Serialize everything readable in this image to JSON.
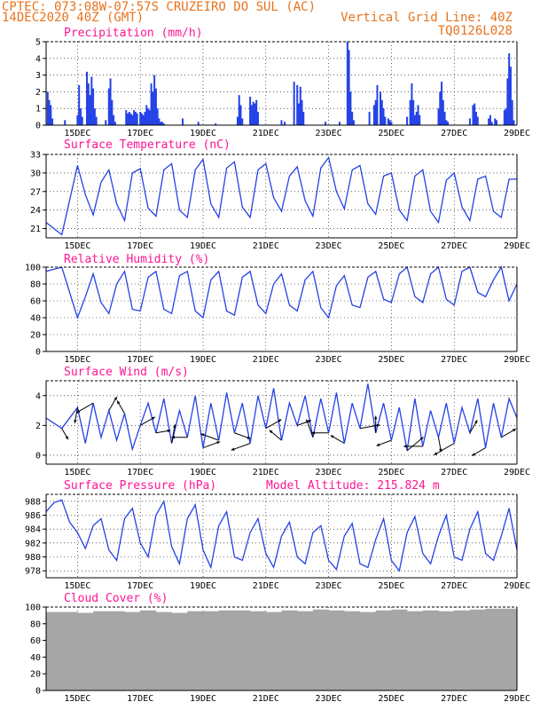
{
  "header": {
    "line1_left": "CPTEC:   073:08W-07:57S  CRUZEIRO DO SUL (AC)",
    "line2_left": "14DEC2020 40Z (GMT)",
    "line2_right": "Vertical Grid Line: 40Z",
    "line3_right": "TQ0126L028",
    "model_altitude": "Model Altitude: 215.824 m"
  },
  "colors": {
    "header": "#e8731c",
    "title": "#ff1493",
    "series": "#2442e6",
    "cloud": "#a6a6a6"
  },
  "x_labels": [
    "15DEC",
    "17DEC",
    "19DEC",
    "21DEC",
    "23DEC",
    "25DEC",
    "27DEC",
    "29DEC"
  ],
  "chart_data": [
    {
      "type": "bar",
      "title": "Precipitation (mm/h)",
      "ylim": [
        0,
        5
      ],
      "yticks": [
        0,
        1,
        2,
        3,
        4,
        5
      ],
      "xlim": [
        14.0,
        29.0
      ],
      "x": [
        14.05,
        14.1,
        14.15,
        14.2,
        14.6,
        15.0,
        15.05,
        15.1,
        15.15,
        15.3,
        15.35,
        15.4,
        15.45,
        15.5,
        15.55,
        15.6,
        15.9,
        16.0,
        16.05,
        16.1,
        16.15,
        16.2,
        16.55,
        16.6,
        16.65,
        16.7,
        16.75,
        16.8,
        16.85,
        16.9,
        17.0,
        17.05,
        17.1,
        17.15,
        17.2,
        17.25,
        17.3,
        17.35,
        17.4,
        17.45,
        17.5,
        17.55,
        17.6,
        17.65,
        17.7,
        17.75,
        18.35,
        18.85,
        19.4,
        20.1,
        20.15,
        20.2,
        20.25,
        20.5,
        20.55,
        20.6,
        20.65,
        20.7,
        20.75,
        21.5,
        21.6,
        21.9,
        22.0,
        22.05,
        22.1,
        22.15,
        22.2,
        22.9,
        23.35,
        23.6,
        23.65,
        23.7,
        23.75,
        23.8,
        24.3,
        24.45,
        24.5,
        24.55,
        24.65,
        24.7,
        24.75,
        24.8,
        24.9,
        24.95,
        25.0,
        25.5,
        25.6,
        25.65,
        25.7,
        25.75,
        25.8,
        25.85,
        25.9,
        26.5,
        26.55,
        26.6,
        26.65,
        26.7,
        26.75,
        26.8,
        27.5,
        27.6,
        27.65,
        27.7,
        27.75,
        28.1,
        28.15,
        28.2,
        28.3,
        28.35,
        28.6,
        28.65,
        28.7,
        28.75,
        28.8,
        28.85,
        28.9
      ],
      "values": [
        2.0,
        1.5,
        1.2,
        0.4,
        0.3,
        0.6,
        2.4,
        1.0,
        0.5,
        3.2,
        2.5,
        1.8,
        2.9,
        2.2,
        1.0,
        0.5,
        0.3,
        2.2,
        2.8,
        1.5,
        0.6,
        0.2,
        0.9,
        0.7,
        0.8,
        0.7,
        0.6,
        0.9,
        0.8,
        0.7,
        0.8,
        0.7,
        0.6,
        0.8,
        1.2,
        1.0,
        0.9,
        2.5,
        2.0,
        3.0,
        2.2,
        1.0,
        0.4,
        0.2,
        0.2,
        0.1,
        0.4,
        0.2,
        0.1,
        0.5,
        1.8,
        1.2,
        0.4,
        1.7,
        1.2,
        1.4,
        1.3,
        1.5,
        0.8,
        0.3,
        0.2,
        2.6,
        2.4,
        1.3,
        2.3,
        1.5,
        0.8,
        0.2,
        0.2,
        5.0,
        4.5,
        2.0,
        0.8,
        0.3,
        0.8,
        1.2,
        1.5,
        2.4,
        2.0,
        1.5,
        1.0,
        0.5,
        0.4,
        0.3,
        0.2,
        0.5,
        1.5,
        2.5,
        1.5,
        0.6,
        0.8,
        1.2,
        0.6,
        1.0,
        2.0,
        2.6,
        1.5,
        0.8,
        0.3,
        0.2,
        0.4,
        1.2,
        1.3,
        0.8,
        0.5,
        0.4,
        0.6,
        0.2,
        0.4,
        0.3,
        0.9,
        1.0,
        2.8,
        4.3,
        3.5,
        1.5,
        0.3
      ]
    },
    {
      "type": "line",
      "title": "Surface Temperature (nC)",
      "ylim": [
        19.5,
        33.0
      ],
      "yticks": [
        21,
        24,
        27,
        30,
        33
      ],
      "xlim": [
        14.0,
        29.0
      ],
      "x": [
        14.0,
        14.5,
        15.0,
        15.25,
        15.5,
        15.75,
        16.0,
        16.25,
        16.5,
        16.75,
        17.0,
        17.25,
        17.5,
        17.75,
        18.0,
        18.25,
        18.5,
        18.75,
        19.0,
        19.25,
        19.5,
        19.75,
        20.0,
        20.25,
        20.5,
        20.75,
        21.0,
        21.25,
        21.5,
        21.75,
        22.0,
        22.25,
        22.5,
        22.75,
        23.0,
        23.25,
        23.5,
        23.75,
        24.0,
        24.25,
        24.5,
        24.75,
        25.0,
        25.25,
        25.5,
        25.75,
        26.0,
        26.25,
        26.5,
        26.75,
        27.0,
        27.25,
        27.5,
        27.75,
        28.0,
        28.25,
        28.5,
        28.75,
        29.0
      ],
      "values": [
        22.0,
        20.0,
        31.2,
        26.5,
        23.2,
        28.5,
        30.5,
        25.0,
        22.3,
        30.0,
        30.7,
        24.3,
        23.0,
        30.5,
        31.5,
        24.0,
        22.8,
        30.5,
        32.2,
        25.0,
        22.8,
        30.8,
        31.8,
        24.5,
        22.8,
        30.5,
        31.5,
        26.0,
        23.8,
        29.5,
        31.0,
        25.5,
        23.0,
        30.8,
        32.5,
        27.0,
        24.2,
        30.5,
        31.2,
        25.0,
        23.3,
        29.5,
        30.0,
        24.0,
        22.3,
        29.5,
        30.5,
        23.8,
        22.0,
        28.8,
        30.0,
        24.5,
        22.3,
        29.0,
        29.5,
        23.8,
        22.8,
        29.0,
        29.0
      ]
    },
    {
      "type": "line",
      "title": "Relative Humidity (%)",
      "ylim": [
        0,
        100
      ],
      "yticks": [
        0,
        20,
        40,
        60,
        80,
        100
      ],
      "xlim": [
        14.0,
        29.0
      ],
      "x": [
        14.0,
        14.5,
        15.0,
        15.25,
        15.5,
        15.75,
        16.0,
        16.25,
        16.5,
        16.75,
        17.0,
        17.25,
        17.5,
        17.75,
        18.0,
        18.25,
        18.5,
        18.75,
        19.0,
        19.25,
        19.5,
        19.75,
        20.0,
        20.25,
        20.5,
        20.75,
        21.0,
        21.25,
        21.5,
        21.75,
        22.0,
        22.25,
        22.5,
        22.75,
        23.0,
        23.25,
        23.5,
        23.75,
        24.0,
        24.25,
        24.5,
        24.75,
        25.0,
        25.25,
        25.5,
        25.75,
        26.0,
        26.25,
        26.5,
        26.75,
        27.0,
        27.25,
        27.5,
        27.75,
        28.0,
        28.25,
        28.5,
        28.75,
        29.0
      ],
      "values": [
        95,
        100,
        40,
        65,
        92,
        58,
        45,
        80,
        95,
        50,
        48,
        88,
        95,
        50,
        45,
        90,
        95,
        48,
        40,
        85,
        95,
        48,
        43,
        88,
        95,
        55,
        45,
        80,
        92,
        55,
        48,
        85,
        95,
        52,
        40,
        78,
        90,
        55,
        52,
        88,
        95,
        62,
        58,
        92,
        100,
        65,
        58,
        92,
        100,
        62,
        55,
        95,
        100,
        70,
        65,
        85,
        100,
        60,
        80
      ]
    },
    {
      "type": "line",
      "title": "Surface Wind (m/s)",
      "ylim": [
        -0.6,
        5.0
      ],
      "yticks": [
        0,
        2,
        4
      ],
      "xlim": [
        14.0,
        29.0
      ],
      "x": [
        14.0,
        14.5,
        15.0,
        15.25,
        15.5,
        15.75,
        16.0,
        16.25,
        16.5,
        16.75,
        17.0,
        17.25,
        17.5,
        17.75,
        18.0,
        18.25,
        18.5,
        18.75,
        19.0,
        19.25,
        19.5,
        19.75,
        20.0,
        20.25,
        20.5,
        20.75,
        21.0,
        21.25,
        21.5,
        21.75,
        22.0,
        22.25,
        22.5,
        22.75,
        23.0,
        23.25,
        23.5,
        23.75,
        24.0,
        24.25,
        24.5,
        24.75,
        25.0,
        25.25,
        25.5,
        25.75,
        26.0,
        26.25,
        26.5,
        26.75,
        27.0,
        27.25,
        27.5,
        27.75,
        28.0,
        28.25,
        28.5,
        28.75,
        29.0
      ],
      "values": [
        2.5,
        1.8,
        3.2,
        0.8,
        3.5,
        1.2,
        3.0,
        1.0,
        2.8,
        0.4,
        2.0,
        3.5,
        1.5,
        3.8,
        0.8,
        3.0,
        1.2,
        4.0,
        0.5,
        3.5,
        1.0,
        4.2,
        1.5,
        3.5,
        0.8,
        4.0,
        1.8,
        4.5,
        1.0,
        3.5,
        2.0,
        4.0,
        1.2,
        3.8,
        1.5,
        4.2,
        0.8,
        3.5,
        1.8,
        4.8,
        1.5,
        3.5,
        1.0,
        3.2,
        0.3,
        3.8,
        0.6,
        3.0,
        1.2,
        3.5,
        0.8,
        3.2,
        1.5,
        3.8,
        0.5,
        3.5,
        1.2,
        3.8,
        2.5
      ],
      "arrows": {
        "x": [
          14.5,
          15.0,
          15.5,
          16.0,
          16.5,
          17.0,
          17.5,
          18.0,
          18.5,
          19.0,
          19.5,
          20.0,
          20.5,
          21.0,
          21.5,
          22.0,
          22.5,
          23.0,
          23.5,
          24.0,
          24.5,
          25.0,
          25.5,
          26.0,
          26.5,
          27.0,
          27.5,
          28.0,
          28.5
        ],
        "dir_deg": [
          300,
          260,
          210,
          60,
          120,
          30,
          10,
          80,
          180,
          20,
          160,
          340,
          200,
          30,
          140,
          20,
          110,
          180,
          150,
          10,
          90,
          200,
          40,
          180,
          280,
          210,
          60,
          210,
          30
        ],
        "length": [
          1.2,
          1.5,
          1.8,
          1.5,
          1.4,
          1.6,
          1.4,
          1.8,
          1.5,
          1.7,
          1.8,
          1.6,
          1.9,
          1.7,
          1.5,
          1.4,
          1.8,
          1.6,
          1.5,
          1.9,
          1.6,
          1.5,
          2.0,
          1.8,
          1.4,
          2.2,
          1.4,
          1.5,
          1.6
        ]
      }
    },
    {
      "type": "line",
      "title": "Surface Pressure (hPa)",
      "ylim": [
        977.0,
        989.0
      ],
      "yticks": [
        978,
        980,
        982,
        984,
        986,
        988
      ],
      "xlim": [
        14.0,
        29.0
      ],
      "x": [
        14.0,
        14.25,
        14.5,
        14.75,
        15.0,
        15.25,
        15.5,
        15.75,
        16.0,
        16.25,
        16.5,
        16.75,
        17.0,
        17.25,
        17.5,
        17.75,
        18.0,
        18.25,
        18.5,
        18.75,
        19.0,
        19.25,
        19.5,
        19.75,
        20.0,
        20.25,
        20.5,
        20.75,
        21.0,
        21.25,
        21.5,
        21.75,
        22.0,
        22.25,
        22.5,
        22.75,
        23.0,
        23.25,
        23.5,
        23.75,
        24.0,
        24.25,
        24.5,
        24.75,
        25.0,
        25.25,
        25.5,
        25.75,
        26.0,
        26.25,
        26.5,
        26.75,
        27.0,
        27.25,
        27.5,
        27.75,
        28.0,
        28.25,
        28.5,
        28.75,
        29.0
      ],
      "values": [
        986.5,
        987.8,
        988.2,
        985.0,
        983.5,
        981.2,
        984.5,
        985.5,
        981.0,
        979.5,
        985.5,
        987.0,
        982.0,
        980.0,
        986.0,
        988.0,
        981.5,
        979.0,
        985.5,
        987.5,
        981.0,
        978.5,
        984.5,
        986.5,
        980.0,
        979.5,
        983.5,
        985.5,
        980.5,
        978.5,
        983.0,
        985.0,
        980.0,
        979.0,
        983.5,
        984.5,
        979.5,
        978.2,
        983.0,
        984.8,
        979.0,
        978.5,
        982.5,
        985.5,
        979.5,
        978.0,
        983.5,
        985.8,
        980.5,
        979.0,
        983.0,
        986.0,
        980.0,
        979.5,
        984.0,
        986.5,
        980.5,
        979.5,
        983.0,
        987.0,
        981.0
      ]
    },
    {
      "type": "bar",
      "title": "Cloud Cover (%)",
      "ylim": [
        0,
        100
      ],
      "yticks": [
        0,
        20,
        40,
        60,
        80,
        100
      ],
      "xlim": [
        14.0,
        29.0
      ],
      "x": [
        14.0,
        14.5,
        15.0,
        15.5,
        16.0,
        16.5,
        17.0,
        17.5,
        18.0,
        18.5,
        19.0,
        19.5,
        20.0,
        20.5,
        21.0,
        21.5,
        22.0,
        22.5,
        23.0,
        23.5,
        24.0,
        24.5,
        25.0,
        25.5,
        26.0,
        26.5,
        27.0,
        27.5,
        28.0,
        28.5
      ],
      "values": [
        94,
        94,
        93,
        95,
        95,
        94,
        96,
        94,
        93,
        95,
        95,
        96,
        96,
        95,
        94,
        96,
        95,
        97,
        96,
        95,
        94,
        96,
        97,
        95,
        96,
        95,
        96,
        97,
        98,
        98
      ]
    }
  ]
}
